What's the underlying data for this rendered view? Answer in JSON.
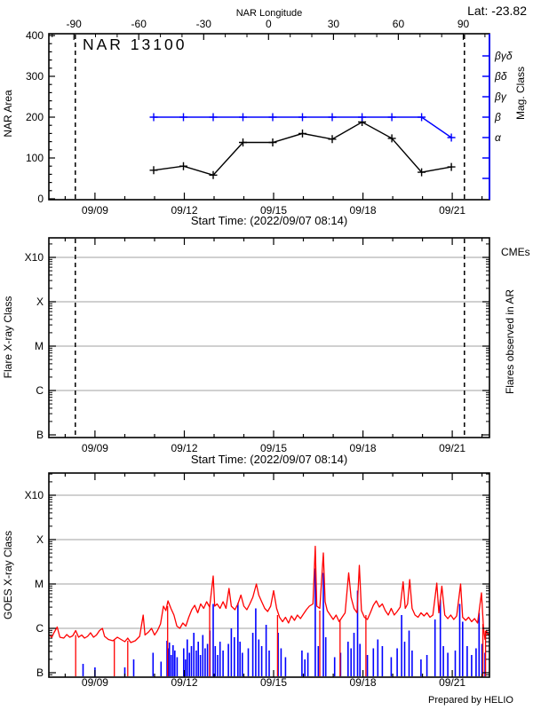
{
  "page": {
    "lat_label": "Lat: -23.82",
    "prepared_by": "Prepared by HELIO"
  },
  "colors": {
    "accent_blue": "#0000ff",
    "red": "#ff0000",
    "grid": "#b3b3b3",
    "axis": "#000000"
  },
  "time_axis": {
    "axis_title": "Start Time: (2022/09/07 08:14)",
    "start_day": 7.45,
    "end_day": 22.25,
    "major_ticks": [
      {
        "day": 9,
        "label": "09/09"
      },
      {
        "day": 12,
        "label": "09/12"
      },
      {
        "day": 15,
        "label": "09/15"
      },
      {
        "day": 18,
        "label": "09/18"
      },
      {
        "day": 21,
        "label": "09/21"
      }
    ],
    "minor_day_start": 8,
    "minor_day_end": 22,
    "limb_marker_days": [
      8.34,
      21.41
    ]
  },
  "level_scale": {
    "B": 0,
    "C": 1,
    "M": 2,
    "X": 3,
    "X10": 4
  },
  "chart_data": [
    {
      "type": "line",
      "title": "NAR 13100",
      "ylabel": "NAR Area",
      "ylim": [
        0,
        400
      ],
      "yticks": [
        0,
        100,
        200,
        300,
        400
      ],
      "y_minor_step": 20,
      "top_axis": {
        "label": "NAR Longitude",
        "tick_values": [
          -90,
          -60,
          -30,
          0,
          30,
          60,
          90
        ],
        "tick_days": [
          8.29,
          10.47,
          12.65,
          14.83,
          17.01,
          19.19,
          21.37
        ],
        "minor_step_deg": 10
      },
      "right_axis": {
        "label": "Mag. Class",
        "color": "#0000ff",
        "tick_area_values": [
          350,
          300,
          250,
          200,
          150,
          100,
          50
        ],
        "class_labels": [
          {
            "label": "βγδ",
            "value": 350
          },
          {
            "label": "βδ",
            "value": 300
          },
          {
            "label": "βγ",
            "value": 250
          },
          {
            "label": "β",
            "value": 200
          },
          {
            "label": "α",
            "value": 150
          }
        ]
      },
      "series": [
        {
          "name": "nar-area",
          "color": "#000000",
          "marker": "plus",
          "days": [
            10.97,
            11.97,
            12.97,
            13.97,
            14.97,
            15.97,
            16.97,
            17.97,
            18.97,
            19.97,
            20.97
          ],
          "values": [
            70,
            80,
            58,
            138,
            138,
            160,
            146,
            188,
            148,
            65,
            78
          ]
        },
        {
          "name": "mag-class",
          "color": "#0000ff",
          "marker": "plus",
          "days": [
            10.97,
            11.97,
            12.97,
            13.97,
            14.97,
            15.97,
            16.97,
            17.97,
            18.97,
            19.97,
            20.97
          ],
          "values": [
            200,
            200,
            200,
            200,
            200,
            200,
            200,
            200,
            200,
            200,
            150
          ],
          "classes": [
            "β",
            "β",
            "β",
            "β",
            "β",
            "β",
            "β",
            "β",
            "β",
            "β",
            "α"
          ]
        }
      ]
    },
    {
      "type": "line",
      "ylabel": "Flare X-ray Class",
      "yticks": [
        "B",
        "C",
        "M",
        "X",
        "X10"
      ],
      "grid_levels": [
        1,
        2,
        3,
        4
      ],
      "right_label": "Flares observed in AR",
      "cme_label": "CMEs",
      "series": []
    },
    {
      "type": "line",
      "ylabel": "GOES X-ray Class",
      "yticks": [
        "B",
        "C",
        "M",
        "X",
        "X10"
      ],
      "grid_levels": [
        1,
        2,
        3,
        4
      ],
      "note": "Prepared by HELIO",
      "red_series": {
        "name": "goes-xray-flux",
        "color": "#ff0000",
        "points": [
          [
            7.45,
            0.86
          ],
          [
            7.55,
            0.8
          ],
          [
            7.62,
            0.9
          ],
          [
            7.73,
            1.03
          ],
          [
            7.82,
            0.8
          ],
          [
            7.95,
            0.78
          ],
          [
            8.05,
            0.86
          ],
          [
            8.15,
            0.8
          ],
          [
            8.25,
            0.83
          ],
          [
            8.35,
            0.95
          ],
          [
            8.45,
            0.8
          ],
          [
            8.55,
            0.85
          ],
          [
            8.65,
            0.78
          ],
          [
            8.75,
            0.82
          ],
          [
            8.85,
            0.9
          ],
          [
            8.95,
            0.8
          ],
          [
            9.05,
            0.85
          ],
          [
            9.15,
            0.95
          ],
          [
            9.25,
            1.0
          ],
          [
            9.32,
            0.82
          ],
          [
            9.45,
            0.75
          ],
          [
            9.6,
            0.72
          ],
          [
            9.75,
            0.8
          ],
          [
            9.9,
            0.74
          ],
          [
            10.0,
            0.7
          ],
          [
            10.1,
            0.78
          ],
          [
            10.2,
            0.68
          ],
          [
            10.35,
            0.72
          ],
          [
            10.5,
            0.82
          ],
          [
            10.62,
            1.3
          ],
          [
            10.68,
            0.85
          ],
          [
            10.8,
            0.92
          ],
          [
            10.9,
            1.0
          ],
          [
            11.0,
            0.85
          ],
          [
            11.1,
            0.95
          ],
          [
            11.2,
            1.1
          ],
          [
            11.3,
            1.5
          ],
          [
            11.38,
            1.4
          ],
          [
            11.45,
            1.62
          ],
          [
            11.55,
            1.45
          ],
          [
            11.65,
            1.3
          ],
          [
            11.75,
            1.05
          ],
          [
            11.85,
            1.0
          ],
          [
            11.95,
            1.12
          ],
          [
            12.05,
            1.05
          ],
          [
            12.15,
            1.25
          ],
          [
            12.25,
            1.42
          ],
          [
            12.35,
            1.52
          ],
          [
            12.45,
            1.35
          ],
          [
            12.55,
            1.55
          ],
          [
            12.65,
            1.45
          ],
          [
            12.75,
            1.6
          ],
          [
            12.85,
            1.48
          ],
          [
            12.97,
            2.18
          ],
          [
            13.02,
            1.5
          ],
          [
            13.1,
            1.55
          ],
          [
            13.2,
            1.45
          ],
          [
            13.3,
            1.6
          ],
          [
            13.4,
            1.45
          ],
          [
            13.5,
            1.9
          ],
          [
            13.58,
            1.5
          ],
          [
            13.7,
            1.42
          ],
          [
            13.8,
            1.55
          ],
          [
            13.9,
            1.75
          ],
          [
            14.0,
            1.5
          ],
          [
            14.1,
            1.42
          ],
          [
            14.2,
            1.55
          ],
          [
            14.3,
            1.7
          ],
          [
            14.42,
            2.0
          ],
          [
            14.5,
            1.75
          ],
          [
            14.6,
            1.6
          ],
          [
            14.7,
            1.45
          ],
          [
            14.8,
            1.38
          ],
          [
            14.9,
            1.5
          ],
          [
            15.0,
            1.85
          ],
          [
            15.1,
            1.45
          ],
          [
            15.2,
            1.25
          ],
          [
            15.3,
            1.15
          ],
          [
            15.4,
            1.25
          ],
          [
            15.5,
            1.12
          ],
          [
            15.6,
            1.28
          ],
          [
            15.7,
            1.18
          ],
          [
            15.8,
            1.3
          ],
          [
            15.9,
            1.22
          ],
          [
            16.0,
            1.32
          ],
          [
            16.1,
            1.42
          ],
          [
            16.2,
            1.5
          ],
          [
            16.32,
            1.55
          ],
          [
            16.4,
            2.85
          ],
          [
            16.45,
            1.5
          ],
          [
            16.55,
            1.45
          ],
          [
            16.67,
            2.7
          ],
          [
            16.73,
            1.6
          ],
          [
            16.8,
            1.4
          ],
          [
            16.9,
            1.3
          ],
          [
            17.0,
            1.2
          ],
          [
            17.1,
            1.3
          ],
          [
            17.2,
            1.15
          ],
          [
            17.3,
            1.25
          ],
          [
            17.4,
            1.35
          ],
          [
            17.52,
            2.25
          ],
          [
            17.6,
            1.7
          ],
          [
            17.7,
            1.45
          ],
          [
            17.8,
            1.35
          ],
          [
            17.88,
            2.42
          ],
          [
            17.95,
            1.4
          ],
          [
            18.05,
            1.25
          ],
          [
            18.15,
            1.2
          ],
          [
            18.25,
            1.35
          ],
          [
            18.35,
            1.52
          ],
          [
            18.45,
            1.62
          ],
          [
            18.55,
            1.48
          ],
          [
            18.65,
            1.55
          ],
          [
            18.75,
            1.4
          ],
          [
            18.85,
            1.3
          ],
          [
            18.95,
            1.45
          ],
          [
            19.05,
            1.3
          ],
          [
            19.15,
            1.38
          ],
          [
            19.25,
            1.48
          ],
          [
            19.35,
            2.05
          ],
          [
            19.42,
            1.45
          ],
          [
            19.5,
            1.55
          ],
          [
            19.57,
            2.1
          ],
          [
            19.65,
            1.45
          ],
          [
            19.75,
            1.3
          ],
          [
            19.85,
            1.25
          ],
          [
            19.95,
            1.35
          ],
          [
            20.05,
            1.28
          ],
          [
            20.15,
            1.35
          ],
          [
            20.25,
            1.25
          ],
          [
            20.35,
            1.3
          ],
          [
            20.48,
            2.02
          ],
          [
            20.55,
            1.35
          ],
          [
            20.65,
            1.95
          ],
          [
            20.75,
            1.3
          ],
          [
            20.85,
            1.22
          ],
          [
            20.95,
            1.3
          ],
          [
            21.05,
            1.2
          ],
          [
            21.15,
            1.28
          ],
          [
            21.28,
            2.0
          ],
          [
            21.35,
            1.25
          ],
          [
            21.45,
            1.18
          ],
          [
            21.55,
            1.25
          ],
          [
            21.65,
            1.15
          ],
          [
            21.75,
            1.22
          ],
          [
            21.85,
            1.12
          ],
          [
            21.98,
            1.8
          ],
          [
            22.05,
            1.0
          ],
          [
            22.1,
            0.75
          ],
          [
            22.15,
            0.95
          ],
          [
            22.2,
            0.85
          ],
          [
            22.25,
            0.9
          ]
        ]
      },
      "dropouts": [
        [
          8.35,
          0.85
        ],
        [
          9.65,
          0.75
        ],
        [
          10.1,
          0.72
        ],
        [
          11.44,
          1.5
        ],
        [
          12.85,
          1.5
        ],
        [
          15.13,
          1.3
        ],
        [
          16.55,
          1.4
        ],
        [
          17.23,
          1.2
        ],
        [
          18.1,
          1.3
        ],
        [
          22.03,
          1.1
        ],
        [
          22.12,
          0.95
        ]
      ],
      "blue_bars": {
        "name": "ar-flare-bars",
        "color": "#0000ff",
        "points": [
          [
            8.6,
            0.2
          ],
          [
            9.0,
            0.12
          ],
          [
            10.0,
            0.12
          ],
          [
            10.3,
            0.3
          ],
          [
            10.95,
            0.45
          ],
          [
            11.22,
            0.25
          ],
          [
            11.42,
            0.72
          ],
          [
            11.46,
            0.55
          ],
          [
            11.5,
            0.68
          ],
          [
            11.56,
            0.4
          ],
          [
            11.62,
            0.62
          ],
          [
            11.68,
            0.5
          ],
          [
            11.76,
            0.35
          ],
          [
            11.98,
            0.55
          ],
          [
            12.04,
            0.3
          ],
          [
            12.1,
            0.75
          ],
          [
            12.17,
            0.45
          ],
          [
            12.24,
            0.6
          ],
          [
            12.32,
            0.9
          ],
          [
            12.4,
            0.5
          ],
          [
            12.47,
            0.7
          ],
          [
            12.54,
            0.4
          ],
          [
            12.62,
            0.85
          ],
          [
            12.7,
            0.55
          ],
          [
            12.78,
            0.65
          ],
          [
            12.86,
            0.95
          ],
          [
            12.97,
            1.55
          ],
          [
            13.04,
            0.6
          ],
          [
            13.12,
            0.4
          ],
          [
            13.2,
            0.7
          ],
          [
            13.3,
            0.5
          ],
          [
            13.48,
            0.65
          ],
          [
            13.58,
            1.0
          ],
          [
            13.68,
            0.8
          ],
          [
            13.8,
            1.57
          ],
          [
            13.87,
            0.7
          ],
          [
            13.95,
            0.45
          ],
          [
            14.15,
            0.55
          ],
          [
            14.3,
            0.9
          ],
          [
            14.4,
            1.45
          ],
          [
            14.5,
            0.75
          ],
          [
            14.6,
            0.6
          ],
          [
            14.75,
            1.08
          ],
          [
            14.85,
            0.5
          ],
          [
            15.15,
            0.9
          ],
          [
            15.25,
            0.55
          ],
          [
            15.4,
            0.35
          ],
          [
            15.95,
            0.5
          ],
          [
            16.05,
            0.3
          ],
          [
            16.15,
            0.45
          ],
          [
            16.4,
            2.35
          ],
          [
            16.5,
            0.6
          ],
          [
            16.67,
            2.25
          ],
          [
            16.75,
            0.8
          ],
          [
            17.05,
            0.35
          ],
          [
            17.25,
            0.45
          ],
          [
            17.5,
            0.7
          ],
          [
            17.6,
            0.55
          ],
          [
            17.7,
            0.9
          ],
          [
            17.82,
            1.85
          ],
          [
            17.9,
            0.65
          ],
          [
            18.15,
            0.4
          ],
          [
            18.35,
            0.55
          ],
          [
            18.5,
            0.75
          ],
          [
            18.65,
            0.6
          ],
          [
            18.95,
            0.35
          ],
          [
            19.15,
            0.55
          ],
          [
            19.3,
            1.3
          ],
          [
            19.4,
            0.7
          ],
          [
            19.55,
            0.95
          ],
          [
            19.65,
            0.5
          ],
          [
            19.95,
            0.3
          ],
          [
            20.15,
            0.4
          ],
          [
            20.42,
            1.2
          ],
          [
            20.6,
            1.65
          ],
          [
            20.7,
            0.6
          ],
          [
            20.85,
            0.45
          ],
          [
            21.1,
            0.5
          ],
          [
            21.25,
            1.55
          ],
          [
            21.35,
            1.15
          ],
          [
            21.5,
            0.6
          ],
          [
            21.65,
            0.4
          ],
          [
            21.8,
            0.55
          ],
          [
            21.9,
            1.35
          ],
          [
            22.0,
            0.65
          ],
          [
            22.1,
            0.45
          ]
        ]
      }
    }
  ]
}
